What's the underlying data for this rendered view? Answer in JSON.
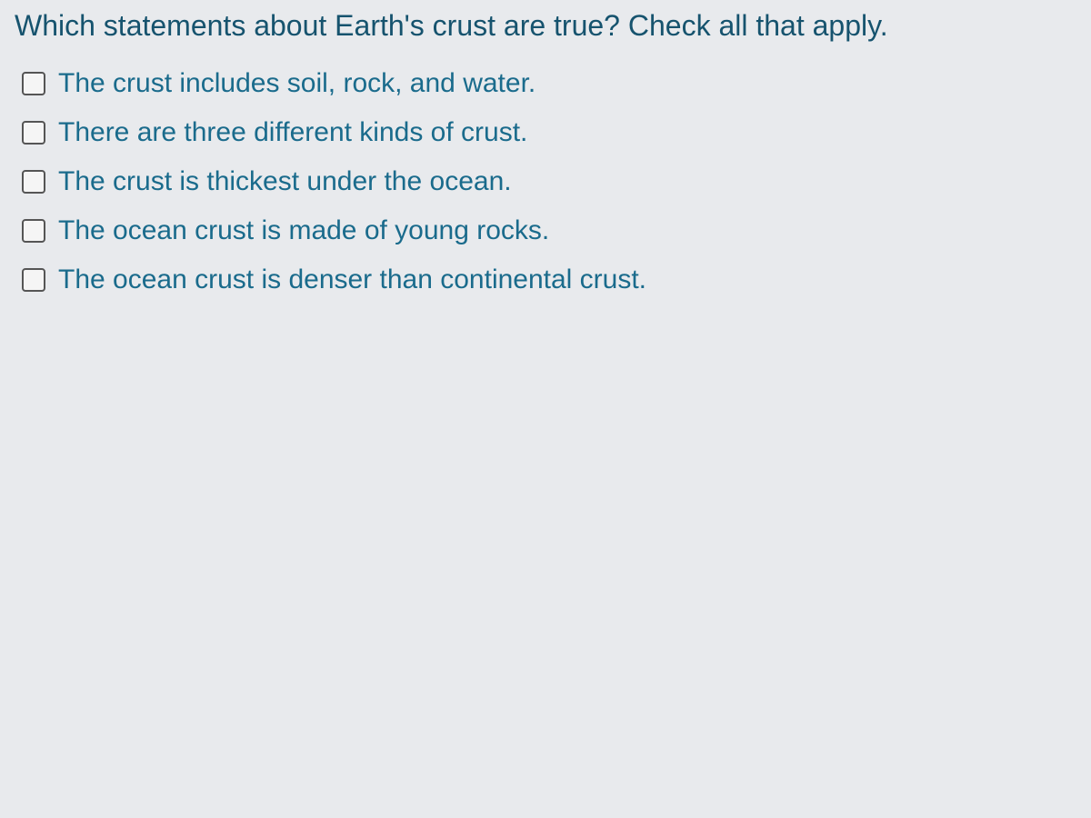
{
  "quiz": {
    "question_text": "Which statements about Earth's crust are true? Check all that apply.",
    "question_color": "#16536e",
    "option_color": "#1a6b8c",
    "background_color": "#e8eaed",
    "checkbox_border_color": "#555555",
    "question_fontsize": 32,
    "option_fontsize": 30,
    "options": [
      {
        "label": "The crust includes soil, rock, and water.",
        "checked": false
      },
      {
        "label": "There are three different kinds of crust.",
        "checked": false
      },
      {
        "label": "The crust is thickest under the ocean.",
        "checked": false
      },
      {
        "label": "The ocean crust is made of young rocks.",
        "checked": false
      },
      {
        "label": "The ocean crust is denser than continental crust.",
        "checked": false
      }
    ]
  }
}
